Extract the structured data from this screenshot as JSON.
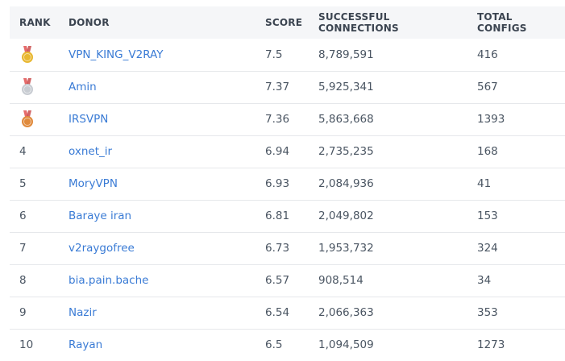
{
  "table": {
    "headers": {
      "rank": "RANK",
      "donor": "DONOR",
      "score": "SCORE",
      "connections": "SUCCESSFUL CONNECTIONS",
      "total": "TOTAL CONFIGS"
    },
    "rows": [
      {
        "rank": "",
        "medal": "gold-medal-icon",
        "medal_color": "#e8b730",
        "donor": "VPN_KING_V2RAY",
        "score": "7.5",
        "connections": "8,789,591",
        "total": "416"
      },
      {
        "rank": "",
        "medal": "silver-medal-icon",
        "medal_color": "#c8ccd2",
        "donor": "Amin",
        "score": "7.37",
        "connections": "5,925,341",
        "total": "567"
      },
      {
        "rank": "",
        "medal": "bronze-medal-icon",
        "medal_color": "#e08a3c",
        "donor": "IRSVPN",
        "score": "7.36",
        "connections": "5,863,668",
        "total": "1393"
      },
      {
        "rank": "4",
        "donor": "oxnet_ir",
        "score": "6.94",
        "connections": "2,735,235",
        "total": "168"
      },
      {
        "rank": "5",
        "donor": "MoryVPN",
        "score": "6.93",
        "connections": "2,084,936",
        "total": "41"
      },
      {
        "rank": "6",
        "donor": "Baraye iran",
        "score": "6.81",
        "connections": "2,049,802",
        "total": "153"
      },
      {
        "rank": "7",
        "donor": "v2raygofree",
        "score": "6.73",
        "connections": "1,953,732",
        "total": "324"
      },
      {
        "rank": "8",
        "donor": "bia.pain.bache",
        "score": "6.57",
        "connections": "908,514",
        "total": "34"
      },
      {
        "rank": "9",
        "donor": "Nazir",
        "score": "6.54",
        "connections": "2,066,363",
        "total": "353"
      },
      {
        "rank": "10",
        "donor": "Rayan",
        "score": "6.5",
        "connections": "1,094,509",
        "total": "1273"
      }
    ]
  },
  "colors": {
    "link": "#3a7bd5",
    "header_bg": "#f5f6f8",
    "ribbon": "#e05252"
  }
}
